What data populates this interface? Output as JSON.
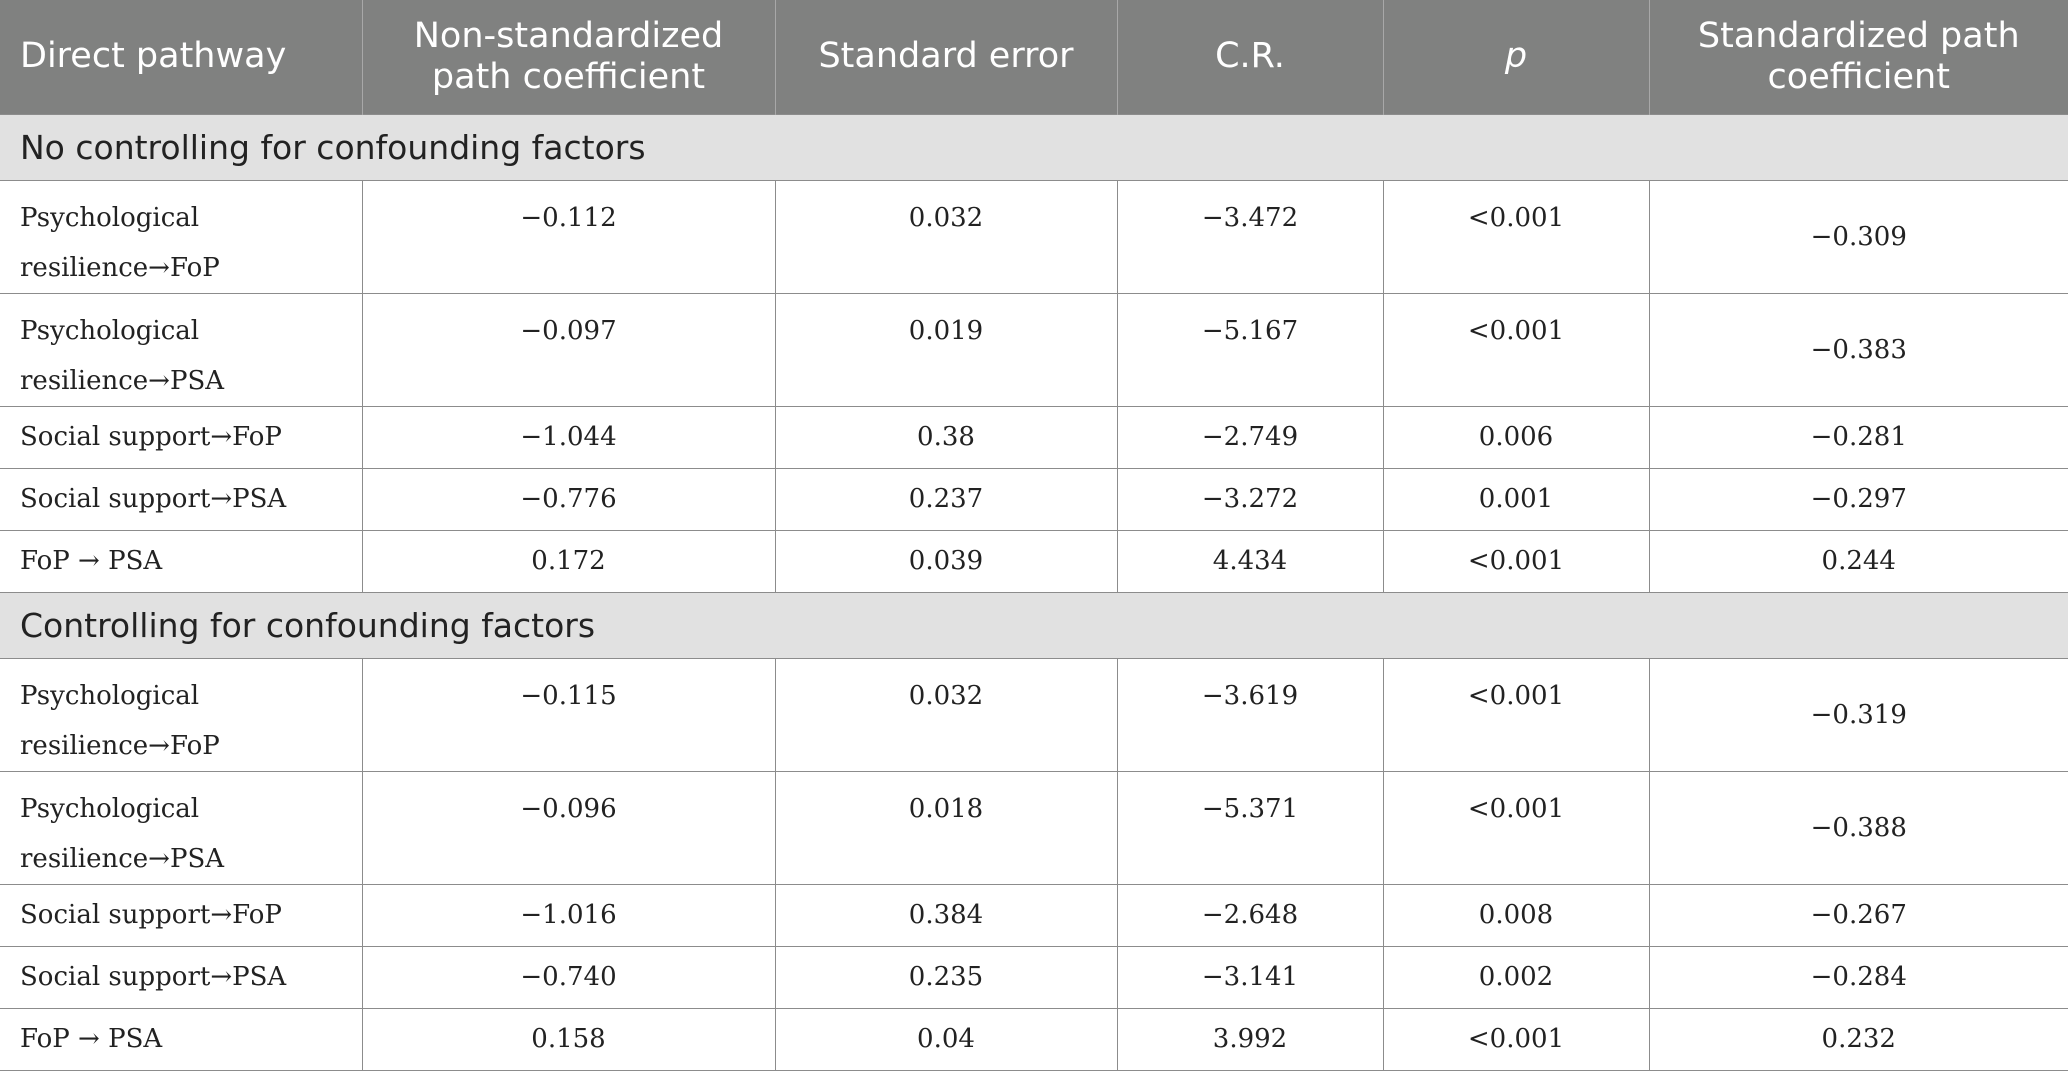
{
  "table": {
    "headers": [
      "Direct pathway",
      "Non-standardized path coefficient",
      "Standard error",
      "C.R.",
      "p",
      "Standardized path coefficient"
    ],
    "sections": [
      {
        "title": "No controlling for confounding factors",
        "rows": [
          {
            "pathway": "Psychological resilience→FoP",
            "coef": "−0.112",
            "se": "0.032",
            "cr": "−3.472",
            "p": "<0.001",
            "std": "−0.309"
          },
          {
            "pathway": "Psychological resilience→PSA",
            "coef": "−0.097",
            "se": "0.019",
            "cr": "−5.167",
            "p": "<0.001",
            "std": "−0.383"
          },
          {
            "pathway": "Social support→FoP",
            "coef": "−1.044",
            "se": "0.38",
            "cr": "−2.749",
            "p": "0.006",
            "std": "−0.281"
          },
          {
            "pathway": "Social support→PSA",
            "coef": "−0.776",
            "se": "0.237",
            "cr": "−3.272",
            "p": "0.001",
            "std": "−0.297"
          },
          {
            "pathway": "FoP → PSA",
            "coef": "0.172",
            "se": "0.039",
            "cr": "4.434",
            "p": "<0.001",
            "std": "0.244"
          }
        ]
      },
      {
        "title": "Controlling for confounding factors",
        "rows": [
          {
            "pathway": "Psychological resilience→FoP",
            "coef": "−0.115",
            "se": "0.032",
            "cr": "−3.619",
            "p": "<0.001",
            "std": "−0.319"
          },
          {
            "pathway": "Psychological resilience→PSA",
            "coef": "−0.096",
            "se": "0.018",
            "cr": "−5.371",
            "p": "<0.001",
            "std": "−0.388"
          },
          {
            "pathway": "Social support→FoP",
            "coef": "−1.016",
            "se": "0.384",
            "cr": "−2.648",
            "p": "0.008",
            "std": "−0.267"
          },
          {
            "pathway": "Social support→PSA",
            "coef": "−0.740",
            "se": "0.235",
            "cr": "−3.141",
            "p": "0.002",
            "std": "−0.284"
          },
          {
            "pathway": "FoP → PSA",
            "coef": "0.158",
            "se": "0.04",
            "cr": "3.992",
            "p": "<0.001",
            "std": "0.232"
          }
        ]
      }
    ]
  }
}
